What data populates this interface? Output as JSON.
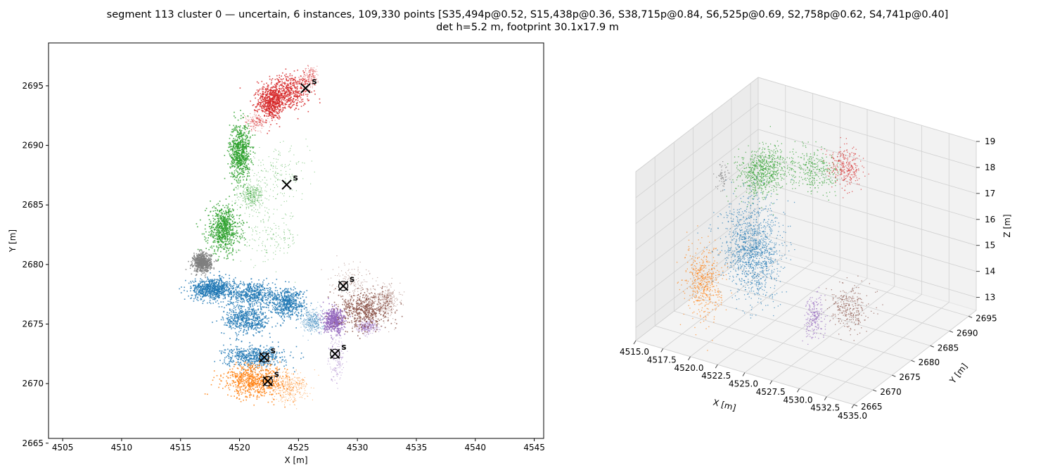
{
  "title": {
    "line1": "segment 113 cluster 0 — uncertain, 6 instances, 109,330 points [S35,494p@0.52, S15,438p@0.36, S38,715p@0.84, S6,525p@0.69, S2,758p@0.62, S4,741p@0.40]",
    "line2": "det h=5.2 m, footprint 30.1x17.9 m"
  },
  "colors": {
    "blue": "#1f77b4",
    "orange": "#ff7f0e",
    "green": "#2ca02c",
    "red": "#d62728",
    "purple": "#9467bd",
    "brown": "#8c564b",
    "gray": "#7f7f7f"
  },
  "chart_data": [
    {
      "type": "scatter",
      "xlabel": "X [m]",
      "ylabel": "Y [m]",
      "xlim": [
        4503.8,
        4545.8
      ],
      "ylim": [
        2665.4,
        2698.6
      ],
      "xticks": [
        4505,
        4510,
        4515,
        4520,
        4525,
        4530,
        4535,
        4540,
        4545
      ],
      "yticks": [
        2665,
        2670,
        2675,
        2680,
        2685,
        2690,
        2695
      ],
      "grid": false,
      "series": [
        {
          "color": "red",
          "regions": [
            [
              4524.0,
              2694.5,
              1.8,
              1.4,
              3
            ],
            [
              4522.6,
              2693.6,
              1.0,
              1.2,
              3
            ],
            [
              4526.0,
              2695.8,
              0.7,
              0.8,
              1
            ],
            [
              4521.4,
              2692.0,
              0.9,
              0.6,
              1
            ]
          ]
        },
        {
          "color": "green",
          "regions": [
            [
              4520.0,
              2689.5,
              0.8,
              2.2,
              4
            ],
            [
              4518.6,
              2683.0,
              1.3,
              1.8,
              4
            ],
            [
              4523.2,
              2687.6,
              2.4,
              1.9,
              1
            ],
            [
              4522.6,
              2682.3,
              2.3,
              2.0,
              1
            ],
            [
              4521.0,
              2685.8,
              0.9,
              0.9,
              2
            ]
          ]
        },
        {
          "color": "gray",
          "regions": [
            [
              4516.8,
              2680.2,
              0.7,
              0.7,
              4
            ]
          ]
        },
        {
          "color": "blue",
          "regions": [
            [
              4517.6,
              2678.0,
              1.6,
              0.8,
              4
            ],
            [
              4521.0,
              2677.6,
              1.9,
              1.0,
              3
            ],
            [
              4524.0,
              2676.8,
              1.4,
              1.1,
              3
            ],
            [
              4520.6,
              2675.4,
              1.8,
              1.1,
              3
            ],
            [
              4521.2,
              2672.3,
              2.3,
              0.8,
              3
            ],
            [
              4526.2,
              2675.3,
              0.8,
              0.9,
              2
            ]
          ]
        },
        {
          "color": "orange",
          "regions": [
            [
              4521.3,
              2670.3,
              2.4,
              1.3,
              4
            ],
            [
              4524.2,
              2669.7,
              1.4,
              1.1,
              2
            ]
          ]
        },
        {
          "color": "purple",
          "regions": [
            [
              4528.0,
              2675.3,
              0.8,
              0.9,
              3
            ],
            [
              4528.2,
              2672.3,
              0.6,
              1.8,
              1
            ],
            [
              4530.8,
              2674.8,
              0.8,
              0.5,
              2
            ]
          ]
        },
        {
          "color": "brown",
          "regions": [
            [
              4530.6,
              2676.2,
              1.9,
              1.4,
              3
            ],
            [
              4529.5,
              2678.5,
              1.5,
              1.4,
              1
            ],
            [
              4532.4,
              2677.0,
              1.0,
              1.2,
              2
            ]
          ]
        }
      ],
      "markers": [
        {
          "x": 4525.6,
          "y": 2694.8,
          "label": "s",
          "circled": false
        },
        {
          "x": 4524.0,
          "y": 2686.7,
          "label": "s",
          "circled": false
        },
        {
          "x": 4528.8,
          "y": 2678.2,
          "label": "s",
          "circled": true
        },
        {
          "x": 4528.1,
          "y": 2672.5,
          "label": "s",
          "circled": true
        },
        {
          "x": 4522.1,
          "y": 2672.2,
          "label": "s",
          "circled": true
        },
        {
          "x": 4522.4,
          "y": 2670.2,
          "label": "s",
          "circled": true
        }
      ]
    },
    {
      "type": "scatter",
      "dimensions": 3,
      "xlabel": "X [m]",
      "ylabel": "Y [m]",
      "zlabel": "Z [m]",
      "xlim": [
        4515,
        4535
      ],
      "ylim": [
        2665,
        2697
      ],
      "zlim": [
        12.5,
        19
      ],
      "xticks": [
        "4515.0",
        "4517.5",
        "4520.0",
        "4522.5",
        "4525.0",
        "4527.5",
        "4530.0",
        "4532.5",
        "4535.0"
      ],
      "yticks": [
        "2665",
        "2670",
        "2675",
        "2680",
        "2685",
        "2690",
        "2695"
      ],
      "zticks": [
        "13",
        "14",
        "15",
        "16",
        "17",
        "18",
        "19"
      ],
      "grid": true
    }
  ]
}
